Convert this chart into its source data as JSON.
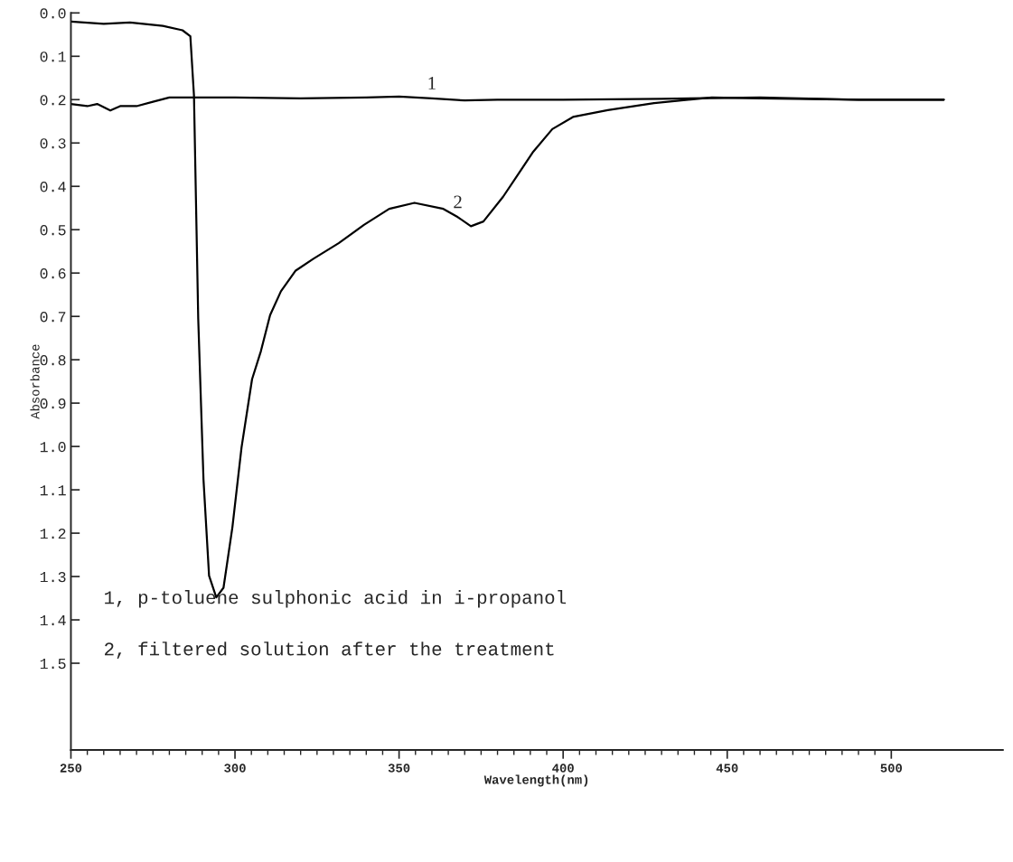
{
  "chart_data": {
    "type": "line",
    "xlabel": "Wavelength(nm)",
    "ylabel": "Absorbance",
    "xlim": [
      250,
      534
    ],
    "ylim": [
      1.7,
      0
    ],
    "xticks": [
      250,
      300,
      350,
      400,
      450,
      500
    ],
    "yticks": [
      {
        "value": 0,
        "label": "0.0"
      },
      0.1,
      0.2,
      0.3,
      0.4,
      0.5,
      0.6,
      0.7,
      0.8,
      0.9,
      {
        "value": 1,
        "label": "1.0"
      },
      1.1,
      1.2,
      1.3,
      1.4,
      1.5
    ],
    "grid": false,
    "legend": false,
    "marker": "none",
    "line_style": "solid",
    "series": [
      {
        "color": "#000000",
        "x": [
          250,
          255,
          258,
          262,
          265,
          270,
          275,
          280,
          300,
          320,
          340,
          350,
          360,
          370,
          380,
          400,
          430,
          460,
          490,
          516
        ],
        "values": [
          0.21,
          0.215,
          0.21,
          0.225,
          0.215,
          0.215,
          0.205,
          0.195,
          0.195,
          0.197,
          0.195,
          0.193,
          0.197,
          0.202,
          0.2,
          0.2,
          0.198,
          0.195,
          0.2,
          0.2
        ]
      },
      {
        "color": "#000000",
        "x": [
          250,
          260,
          268,
          278,
          284,
          286.4,
          287.5,
          288.8,
          290.4,
          292.1,
          294.3,
          296.5,
          299.2,
          302,
          305.2,
          307.9,
          310.7,
          314,
          318.4,
          323.9,
          331.6,
          339.3,
          347,
          354.7,
          363.5,
          367.9,
          371.9,
          375.7,
          381.7,
          386.2,
          390.7,
          396.7,
          403,
          413.6,
          427.7,
          445.3,
          460,
          490,
          516
        ],
        "values": [
          0.02,
          0.025,
          0.022,
          0.03,
          0.04,
          0.054,
          0.19,
          0.706,
          1.076,
          1.298,
          1.348,
          1.326,
          1.187,
          1.002,
          0.845,
          0.78,
          0.697,
          0.642,
          0.595,
          0.567,
          0.531,
          0.489,
          0.452,
          0.438,
          0.452,
          0.471,
          0.492,
          0.481,
          0.424,
          0.373,
          0.322,
          0.268,
          0.24,
          0.224,
          0.208,
          0.195,
          0.197,
          0.2,
          0.2
        ]
      }
    ],
    "annotations": [
      {
        "text": "1",
        "x": 360,
        "y": 0.197
      },
      {
        "text": "2",
        "x": 367.9,
        "y": 0.471
      },
      "1, p-toluene sulphonic acid in i-propanol",
      "2, filtered solution after the treatment"
    ]
  }
}
